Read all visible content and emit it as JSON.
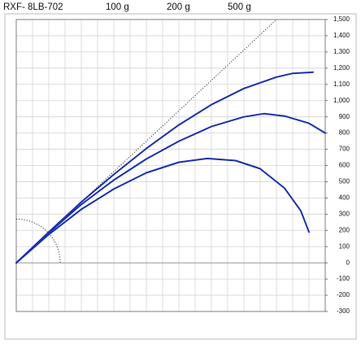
{
  "chart_data": {
    "type": "line",
    "title": "RXF- 8LB-702",
    "xlim": [
      0,
      1900
    ],
    "xticks": [
      0,
      100,
      200,
      300,
      400,
      500,
      600,
      700,
      800,
      900,
      1000,
      1100,
      1200,
      1300,
      1400,
      1500,
      1600,
      1700,
      1800,
      1900
    ],
    "ylim": [
      -300,
      1500
    ],
    "yticks": [
      {
        "value": 1500,
        "label": "1,500"
      },
      {
        "value": 1400,
        "label": "1,400"
      },
      {
        "value": 1300,
        "label": "1,300"
      },
      {
        "value": 1200,
        "label": "1,200"
      },
      {
        "value": 1100,
        "label": "1,100"
      },
      {
        "value": 1000,
        "label": "1,000"
      },
      900,
      800,
      700,
      600,
      500,
      400,
      300,
      200,
      100,
      0,
      -100,
      -200,
      -300
    ],
    "grid": true,
    "series": [
      {
        "name": "100 g",
        "color": "#1a2fb0",
        "x": [
          0,
          200,
          400,
          600,
          800,
          1000,
          1200,
          1400,
          1600,
          1700,
          1825
        ],
        "values": [
          0,
          190,
          375,
          545,
          705,
          850,
          975,
          1075,
          1145,
          1168,
          1175
        ]
      },
      {
        "name": "200 g",
        "color": "#1a2fb0",
        "x": [
          0,
          200,
          400,
          600,
          800,
          1000,
          1200,
          1400,
          1525,
          1650,
          1800,
          1900
        ],
        "values": [
          0,
          185,
          360,
          510,
          640,
          750,
          840,
          900,
          920,
          905,
          860,
          800
        ]
      },
      {
        "name": "500 g",
        "color": "#1a2fb0",
        "x": [
          0,
          200,
          400,
          600,
          800,
          1000,
          1175,
          1350,
          1500,
          1650,
          1750,
          1800
        ],
        "values": [
          0,
          175,
          330,
          455,
          555,
          620,
          643,
          630,
          580,
          460,
          320,
          190
        ]
      }
    ],
    "reference_line": {
      "x": [
        0,
        1600
      ],
      "values": [
        0,
        1500
      ]
    },
    "reference_arc_radius": 270
  }
}
